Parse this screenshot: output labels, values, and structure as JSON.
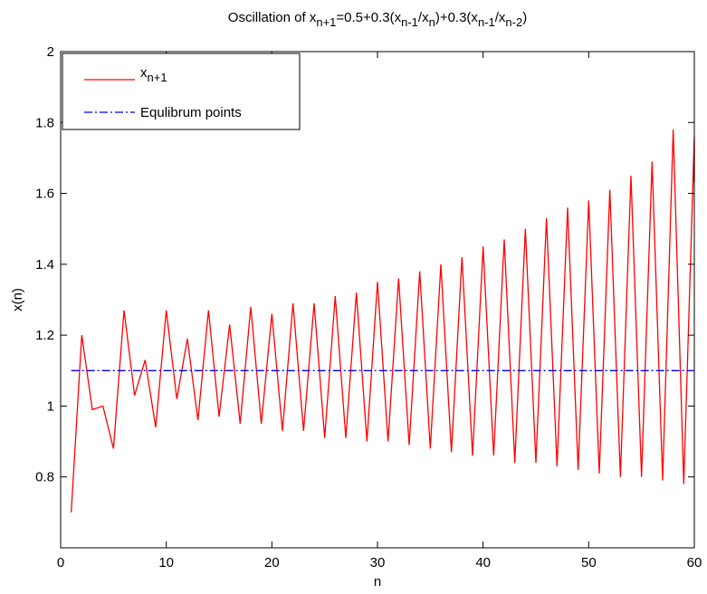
{
  "chart_data": {
    "type": "line",
    "title": {
      "base": "Oscillation of x",
      "parts": [
        {
          "t": "Oscillation of x",
          "sub": false
        },
        {
          "t": "n+1",
          "sub": true
        },
        {
          "t": "=0.5+0.3(x",
          "sub": false
        },
        {
          "t": "n-1",
          "sub": true
        },
        {
          "t": "/x",
          "sub": false
        },
        {
          "t": "n",
          "sub": true
        },
        {
          "t": ")+0.3(x",
          "sub": false
        },
        {
          "t": "n-1",
          "sub": true
        },
        {
          "t": "/x",
          "sub": false
        },
        {
          "t": "n-2",
          "sub": true
        },
        {
          "t": ")",
          "sub": false
        }
      ]
    },
    "xlabel": "n",
    "ylabel": "x(n)",
    "xlim": [
      0,
      60
    ],
    "ylim": [
      0.6,
      2
    ],
    "xticks": [
      0,
      10,
      20,
      30,
      40,
      50,
      60
    ],
    "xtick_labels": [
      "0",
      "10",
      "20",
      "30",
      "40",
      "50",
      "60"
    ],
    "yticks": [
      0.8,
      1,
      1.2,
      1.4,
      1.6,
      1.8,
      2
    ],
    "ytick_labels": [
      "0.8",
      "1",
      "1.2",
      "1.4",
      "1.6",
      "1.8",
      "2"
    ],
    "grid": false,
    "legend_position": "top-left",
    "legend": [
      {
        "label_base": "x",
        "label_sub": "n+1",
        "style": "solid",
        "color": "#ff0000"
      },
      {
        "label": "Equlibrum points",
        "style": "dashdot",
        "color": "#0000ff"
      }
    ],
    "series": [
      {
        "name": "x_{n+1}",
        "color": "#ff0000",
        "x": [
          1,
          2,
          3,
          4,
          5,
          6,
          7,
          8,
          9,
          10,
          11,
          12,
          13,
          14,
          15,
          16,
          17,
          18,
          19,
          20,
          21,
          22,
          23,
          24,
          25,
          26,
          27,
          28,
          29,
          30,
          31,
          32,
          33,
          34,
          35,
          36,
          37,
          38,
          39,
          40,
          41,
          42,
          43,
          44,
          45,
          46,
          47,
          48,
          49,
          50,
          51,
          52,
          53,
          54,
          55,
          56,
          57,
          58,
          59,
          60,
          60
        ],
        "y": [
          0.7,
          1.2,
          0.99,
          1.0,
          0.88,
          1.27,
          1.03,
          1.13,
          0.94,
          1.27,
          1.02,
          1.19,
          0.96,
          1.27,
          0.97,
          1.23,
          0.95,
          1.28,
          0.95,
          1.26,
          0.93,
          1.29,
          0.93,
          1.29,
          0.91,
          1.31,
          0.91,
          1.32,
          0.9,
          1.35,
          0.9,
          1.36,
          0.89,
          1.38,
          0.88,
          1.4,
          0.87,
          1.42,
          0.86,
          1.45,
          0.86,
          1.47,
          0.84,
          1.5,
          0.84,
          1.53,
          0.83,
          1.56,
          0.82,
          1.58,
          0.81,
          1.61,
          0.8,
          1.65,
          0.8,
          1.69,
          0.79,
          1.78,
          0.78,
          1.76,
          1.63
        ]
      },
      {
        "name": "Equlibrum points",
        "color": "#0000ff",
        "x": [
          1,
          60
        ],
        "y": [
          1.1,
          1.1
        ]
      }
    ]
  }
}
